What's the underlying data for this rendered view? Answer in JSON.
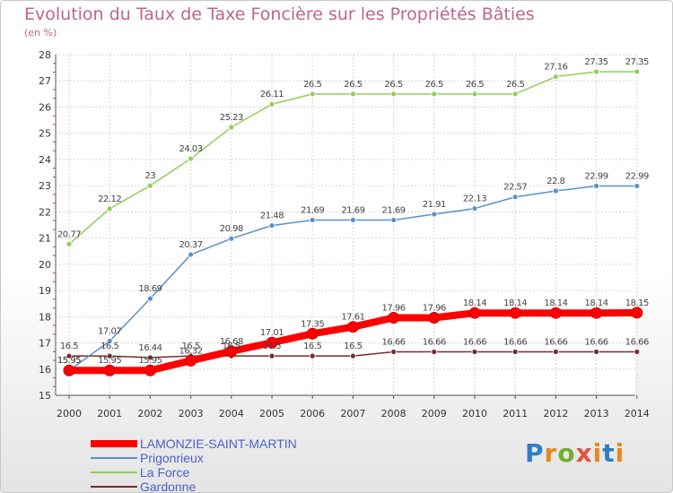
{
  "header": {
    "title": "Evolution du Taux de Taxe Foncière sur les Propriétés Bâties",
    "unit": "(en %)"
  },
  "logo": {
    "text": "Proxiti"
  },
  "chart_data": {
    "type": "line",
    "title": "Evolution du Taux de Taxe Foncière sur les Propriétés Bâties",
    "ylabel": "(en %)",
    "xlabel": "",
    "x": [
      "2000",
      "2001",
      "2002",
      "2003",
      "2004",
      "2005",
      "2006",
      "2007",
      "2008",
      "2009",
      "2010",
      "2011",
      "2012",
      "2013",
      "2014"
    ],
    "ylim": [
      15,
      28
    ],
    "yticks": [
      "15",
      "16",
      "17",
      "18",
      "19",
      "20",
      "21",
      "22",
      "23",
      "24",
      "25",
      "26",
      "27",
      "28"
    ],
    "grid": true,
    "legend_position": "bottom-left",
    "series": [
      {
        "name": "LAMONZIE-SAINT-MARTIN",
        "color": "#ff0000",
        "values": [
          15.95,
          15.95,
          15.95,
          16.32,
          16.68,
          17.01,
          17.35,
          17.61,
          17.96,
          17.96,
          18.14,
          18.14,
          18.14,
          18.14,
          18.15
        ],
        "labels": [
          "15.95",
          "15.95",
          "15.95",
          "16.32",
          "16.68",
          "17.01",
          "17.35",
          "17.61",
          "17.96",
          "17.96",
          "18.14",
          "18.14",
          "18.14",
          "18.14",
          "18.15"
        ]
      },
      {
        "name": "Prigonrieux",
        "color": "#5b8fc9",
        "values": [
          15.95,
          17.07,
          18.69,
          20.37,
          20.98,
          21.48,
          21.69,
          21.69,
          21.69,
          21.91,
          22.13,
          22.57,
          22.8,
          22.99,
          22.99
        ],
        "labels": [
          "15.95",
          "17.07",
          "18.69",
          "20.37",
          "20.98",
          "21.48",
          "21.69",
          "21.69",
          "21.69",
          "21.91",
          "22.13",
          "22.57",
          "22.8",
          "22.99",
          "22.99"
        ]
      },
      {
        "name": "La Force",
        "color": "#8fcf5a",
        "values": [
          20.77,
          22.12,
          23,
          24.03,
          25.23,
          26.11,
          26.5,
          26.5,
          26.5,
          26.5,
          26.5,
          26.5,
          27.16,
          27.35,
          27.35
        ],
        "labels": [
          "20.77",
          "22.12",
          "23",
          "24.03",
          "25.23",
          "26.11",
          "26.5",
          "26.5",
          "26.5",
          "26.5",
          "26.5",
          "26.5",
          "27.16",
          "27.35",
          "27.35"
        ]
      },
      {
        "name": "Gardonne",
        "color": "#7a2a2a",
        "values": [
          16.5,
          16.5,
          16.44,
          16.5,
          16.5,
          16.5,
          16.5,
          16.5,
          16.66,
          16.66,
          16.66,
          16.66,
          16.66,
          16.66,
          16.66
        ],
        "labels": [
          "16.5",
          "16.5",
          "16.44",
          "16.5",
          "16.5",
          "16.5",
          "16.5",
          "16.5",
          "16.66",
          "16.66",
          "16.66",
          "16.66",
          "16.66",
          "16.66",
          "16.66"
        ]
      }
    ]
  }
}
